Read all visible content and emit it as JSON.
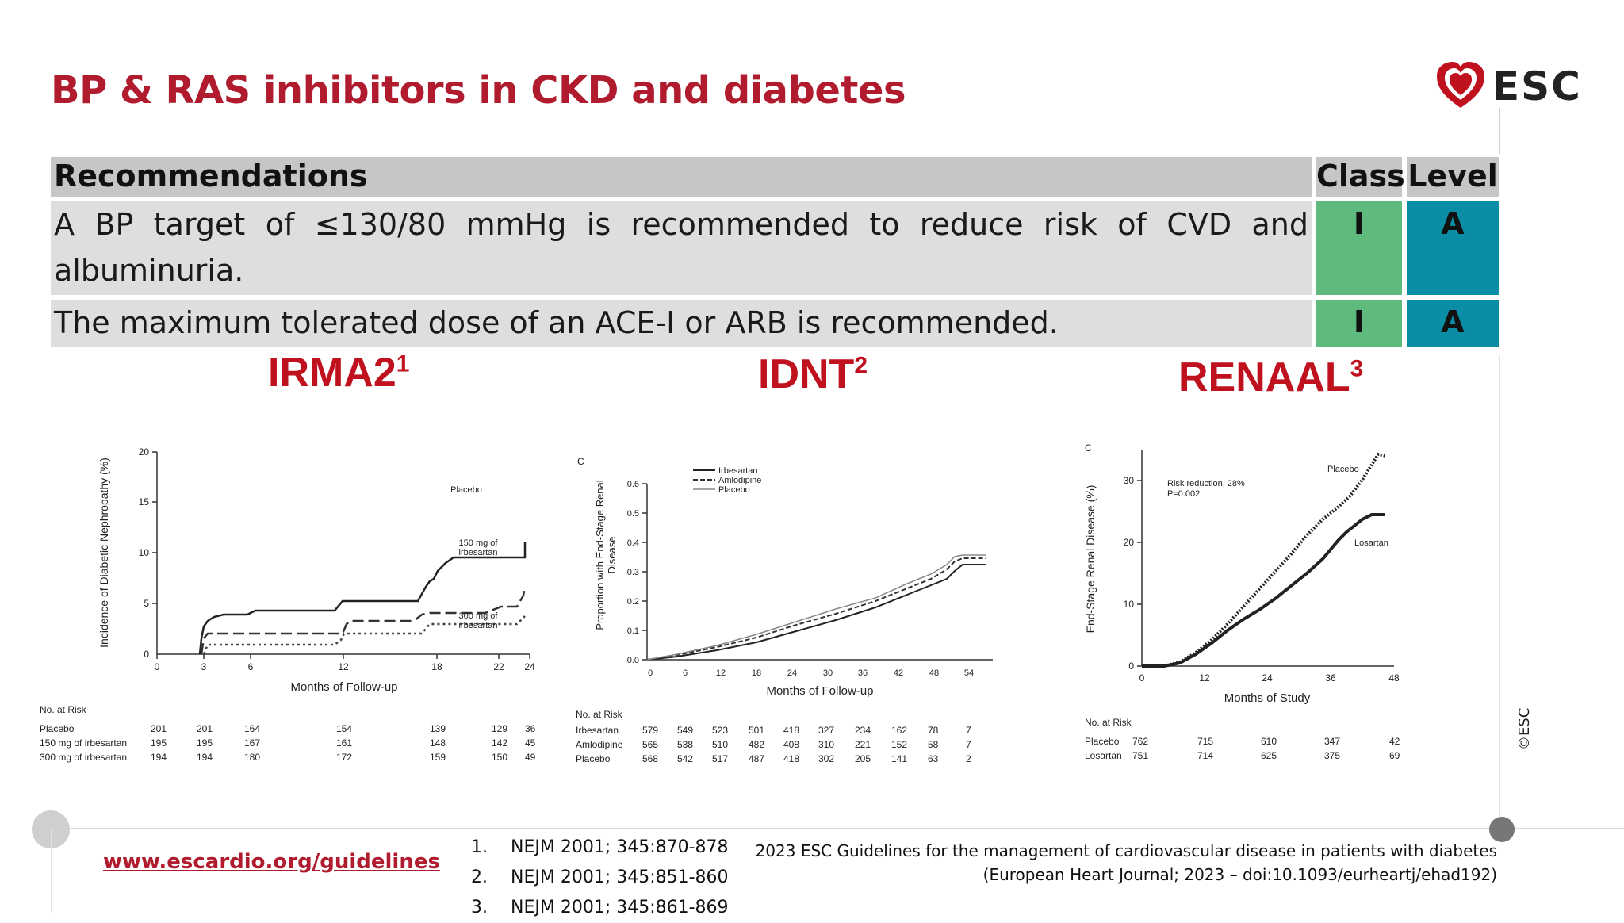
{
  "slide": {
    "title": "BP & RAS inhibitors in CKD and diabetes",
    "logo_text": "ESC",
    "copyright": "©ESC"
  },
  "recommendations": {
    "header": {
      "label": "Recommendations",
      "class": "Class",
      "level": "Level"
    },
    "rows": [
      {
        "text": "A BP target of ≤130/80 mmHg is recommended to reduce risk of CVD and albuminuria.",
        "class": "I",
        "level": "A"
      },
      {
        "text": "The maximum tolerated dose of an ACE-I or ARB is recommended.",
        "class": "I",
        "level": "A"
      }
    ],
    "colors": {
      "header": "#c6c6c6",
      "row": "#dedede",
      "class": "#5fba7d",
      "level": "#0b8ea5"
    }
  },
  "trials": [
    {
      "name": "IRMA2",
      "ref": "1"
    },
    {
      "name": "IDNT",
      "ref": "2"
    },
    {
      "name": "RENAAL",
      "ref": "3"
    }
  ],
  "figures": {
    "irma2": {
      "ylabel": "Incidence of Diabetic Nephropathy (%)",
      "xlabel": "Months of Follow-up",
      "yticks": [
        "0",
        "5",
        "10",
        "15",
        "20"
      ],
      "xticks": [
        "0",
        "3",
        "6",
        "12",
        "18",
        "22",
        "24"
      ],
      "labels": {
        "placebo": "Placebo",
        "mid": "150 mg of irbesartan",
        "high": "300 mg of irbesartan"
      },
      "risk_header": "No. at Risk",
      "risk_rows": [
        {
          "name": "Placebo",
          "values": [
            "201",
            "201",
            "164",
            "154",
            "139",
            "129",
            "36"
          ]
        },
        {
          "name": "150 mg of irbesartan",
          "values": [
            "195",
            "195",
            "167",
            "161",
            "148",
            "142",
            "45"
          ]
        },
        {
          "name": "300 mg of irbesartan",
          "values": [
            "194",
            "194",
            "180",
            "172",
            "159",
            "150",
            "49"
          ]
        }
      ]
    },
    "idnt": {
      "panel": "C",
      "ylabel": "Proportion with End-Stage Renal Disease",
      "xlabel": "Months of Follow-up",
      "yticks": [
        "0.0",
        "0.1",
        "0.2",
        "0.3",
        "0.4",
        "0.5",
        "0.6"
      ],
      "xticks": [
        "0",
        "6",
        "12",
        "18",
        "24",
        "30",
        "36",
        "42",
        "48",
        "54"
      ],
      "legend": [
        "Irbesartan",
        "Amlodipine",
        "Placebo"
      ],
      "risk_header": "No. at Risk",
      "risk_rows": [
        {
          "name": "Irbesartan",
          "values": [
            "579",
            "549",
            "523",
            "501",
            "418",
            "327",
            "234",
            "162",
            "78",
            "7"
          ]
        },
        {
          "name": "Amlodipine",
          "values": [
            "565",
            "538",
            "510",
            "482",
            "408",
            "310",
            "221",
            "152",
            "58",
            "7"
          ]
        },
        {
          "name": "Placebo",
          "values": [
            "568",
            "542",
            "517",
            "487",
            "418",
            "302",
            "205",
            "141",
            "63",
            "2"
          ]
        }
      ]
    },
    "renaal": {
      "panel": "C",
      "ylabel": "End-Stage Renal Disease (%)",
      "xlabel": "Months of Study",
      "yticks": [
        "0",
        "10",
        "20",
        "30"
      ],
      "xticks": [
        "0",
        "12",
        "24",
        "36",
        "48"
      ],
      "annotation": [
        "Risk reduction, 28%",
        "P=0.002"
      ],
      "labels": {
        "placebo": "Placebo",
        "losartan": "Losartan"
      },
      "risk_header": "No. at Risk",
      "risk_rows": [
        {
          "name": "Placebo",
          "values": [
            "762",
            "715",
            "610",
            "347",
            "42"
          ]
        },
        {
          "name": "Losartan",
          "values": [
            "751",
            "714",
            "625",
            "375",
            "69"
          ]
        }
      ]
    }
  },
  "footer": {
    "url": "www.escardio.org/guidelines",
    "references": [
      {
        "num": "1.",
        "text": "NEJM 2001; 345:870-878"
      },
      {
        "num": "2.",
        "text": "NEJM 2001; 345:851-860"
      },
      {
        "num": "3.",
        "text": "NEJM 2001; 345:861-869"
      }
    ],
    "citation_line1": "2023 ESC Guidelines for the management of cardiovascular disease in patients with diabetes",
    "citation_line2": "(European Heart Journal; 2023 – doi:10.1093/eurheartj/ehad192)"
  }
}
